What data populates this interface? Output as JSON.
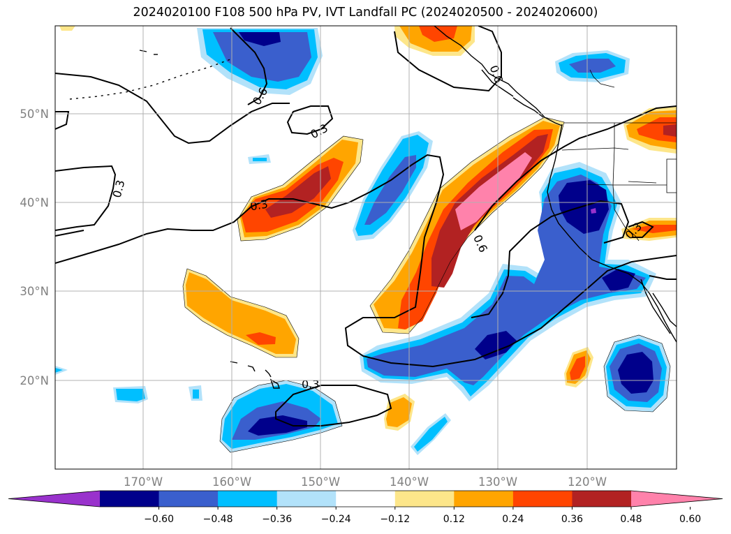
{
  "title": "2024020100 F108 500 hPa PV, IVT Landfall PC (2024020500 - 2024020600)",
  "lat_labels": [
    "50°N",
    "40°N",
    "30°N",
    "20°N"
  ],
  "lon_labels": [
    "170°W",
    "160°W",
    "150°W",
    "140°W",
    "130°W",
    "120°W"
  ],
  "contour_labels": [
    "0.6",
    "0.3",
    "0.3",
    "0.3",
    "0.6",
    "0.3",
    "0.3"
  ],
  "colorbar": {
    "colors": [
      "#9932cc",
      "#00008b",
      "#3a5fcd",
      "#00bfff",
      "#b2e2fa",
      "#ffffff",
      "#fde68a",
      "#ffa500",
      "#ff4500",
      "#b22222",
      "#ff82ab"
    ],
    "tick_labels": [
      "−0.60",
      "−0.48",
      "−0.36",
      "−0.24",
      "−0.12",
      "0.12",
      "0.24",
      "0.36",
      "0.48",
      "0.60"
    ]
  },
  "grid": true
}
